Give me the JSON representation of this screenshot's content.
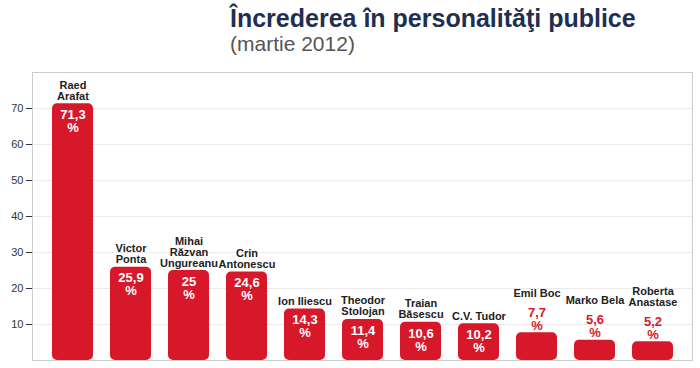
{
  "chart_data": {
    "type": "bar",
    "title": "Încrederea în personalităţi publice",
    "subtitle": "(martie 2012)",
    "categories": [
      "Raed Arafat",
      "Victor Ponta",
      "Mihai Răzvan Ungureanu",
      "Crin Antonescu",
      "Ion Iliescu",
      "Theodor Stolojan",
      "Traian Băsescu",
      "C.V. Tudor",
      "Emil Boc",
      "Marko Bela",
      "Roberta Anastase"
    ],
    "values": [
      71.3,
      25.9,
      25,
      24.6,
      14.3,
      11.4,
      10.6,
      10.2,
      7.7,
      5.6,
      5.2
    ],
    "value_labels": [
      "71,3 %",
      "25,9 %",
      "25 %",
      "24,6 %",
      "14,3 %",
      "11,4 %",
      "10,6 %",
      "10,2 %",
      "7,7 %",
      "5,6 %",
      "5,2 %"
    ],
    "color": "#d7182a",
    "ylim": [
      0,
      80
    ],
    "yticks": [
      10,
      20,
      30,
      40,
      50,
      60,
      70
    ],
    "grid": true,
    "data_labels": true,
    "tick_labels": "y"
  }
}
